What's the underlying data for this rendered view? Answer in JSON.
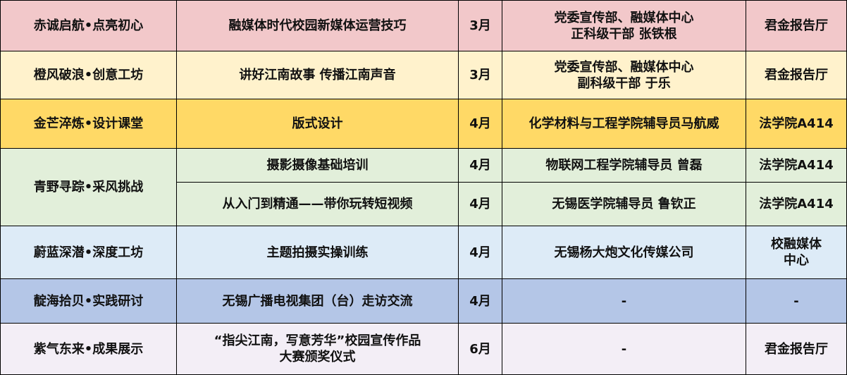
{
  "colors": {
    "row1": "#f2c8ca",
    "row2": "#fff2cc",
    "row3": "#ffd966",
    "row4": "#e2efda",
    "row6": "#ddebf7",
    "row7": "#b4c6e7",
    "row8": "#f3eef6"
  },
  "rows": [
    {
      "module": "赤诚启航•点亮初心",
      "topic": "融媒体时代校园新媒体运营技巧",
      "month": "3月",
      "speaker": "党委宣传部、融媒体中心\n正科级干部 张铁根",
      "venue": "君金报告厅"
    },
    {
      "module": "橙风破浪•创意工坊",
      "topic": "讲好江南故事 传播江南声音",
      "month": "3月",
      "speaker": "党委宣传部、融媒体中心\n副科级干部  于乐",
      "venue": "君金报告厅"
    },
    {
      "module": "金芒淬炼•设计课堂",
      "topic": "版式设计",
      "month": "4月",
      "speaker": "化学材料与工程学院辅导员马航威",
      "venue": "法学院A414"
    },
    {
      "module": "青野寻踪•采风挑战",
      "topic": "摄影摄像基础培训",
      "month": "4月",
      "speaker": "物联网工程学院辅导员 曾磊",
      "venue": "法学院A414"
    },
    {
      "topic": "从入门到精通——带你玩转短视频",
      "month": "4月",
      "speaker": "无锡医学院辅导员 鲁钦正",
      "venue": "法学院A414"
    },
    {
      "module": "蔚蓝深潜•深度工坊",
      "topic": "主题拍摄实操训练",
      "month": "4月",
      "speaker": "无锡杨大炮文化传媒公司",
      "venue": "校融媒体\n中心"
    },
    {
      "module": "靛海拾贝•实践研讨",
      "topic": "无锡广播电视集团（台）走访交流",
      "month": "4月",
      "speaker": "-",
      "venue": "-"
    },
    {
      "module": "紫气东来•成果展示",
      "topic": "“指尖江南，写意芳华”校园宣传作品\n大赛颁奖仪式",
      "month": "6月",
      "speaker": "-",
      "venue": "君金报告厅"
    }
  ]
}
